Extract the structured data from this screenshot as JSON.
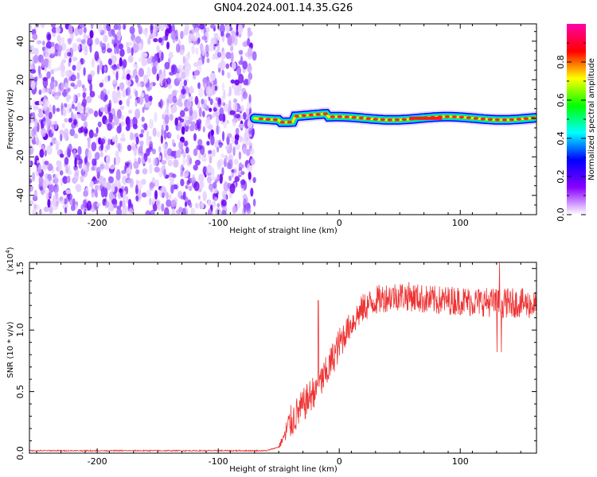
{
  "title": "GN04.2024.001.14.35.G26",
  "chart_data": [
    {
      "type": "heatmap",
      "xlabel": "Height of straight line (km)",
      "ylabel": "Frequency (Hz)",
      "xlim": [
        -256,
        163
      ],
      "ylim": [
        -50,
        49
      ],
      "xticks": [
        "-200",
        "-100",
        "0",
        "100"
      ],
      "xtick_values": [
        -200,
        -100,
        0,
        100
      ],
      "yticks": [
        "40",
        "20",
        "0",
        "-20",
        "-40"
      ],
      "ytick_values": [
        40,
        20,
        0,
        -20,
        -40
      ],
      "noise_region_x": [
        -256,
        -70
      ],
      "signal_band_center_hz": 0,
      "colorbar": {
        "label": "Normalized spectral amplitude",
        "range": [
          0.0,
          1.0
        ],
        "ticks": [
          "0.0",
          "0.2",
          "0.4",
          "0.6",
          "0.8"
        ],
        "tick_values": [
          0.0,
          0.2,
          0.4,
          0.6,
          0.8
        ],
        "colors": [
          "#ffffff",
          "#8800ff",
          "#0000ff",
          "#00ffff",
          "#00ff00",
          "#ffff00",
          "#ff0000",
          "#ff00aa"
        ]
      }
    },
    {
      "type": "line",
      "xlabel": "Height of straight line (km)",
      "ylabel": "SNR (10 * v/v)",
      "scale_label": "(x10",
      "scale_exponent": "4",
      "scale_close": ")",
      "xlim": [
        -256,
        163
      ],
      "ylim": [
        0,
        1.55
      ],
      "xticks": [
        "-200",
        "-100",
        "0",
        "100"
      ],
      "xtick_values": [
        -200,
        -100,
        0,
        100
      ],
      "yticks": [
        "0.0",
        "0.5",
        "1.0",
        "1.5"
      ],
      "ytick_values": [
        0.0,
        0.5,
        1.0,
        1.5
      ],
      "color": "#ee3333",
      "x": [
        -256,
        -200,
        -150,
        -100,
        -60,
        -50,
        -45,
        -40,
        -35,
        -30,
        -25,
        -20,
        -15,
        -10,
        -5,
        0,
        5,
        10,
        15,
        20,
        30,
        40,
        50,
        60,
        70,
        80,
        90,
        100,
        110,
        120,
        130,
        140,
        150,
        163
      ],
      "values": [
        0.02,
        0.02,
        0.02,
        0.02,
        0.02,
        0.05,
        0.15,
        0.25,
        0.32,
        0.38,
        0.45,
        0.52,
        0.58,
        0.66,
        0.78,
        0.88,
        0.98,
        1.05,
        1.12,
        1.18,
        1.24,
        1.27,
        1.28,
        1.27,
        1.25,
        1.24,
        1.24,
        1.24,
        1.23,
        1.23,
        1.22,
        1.22,
        1.22,
        1.2
      ]
    }
  ]
}
